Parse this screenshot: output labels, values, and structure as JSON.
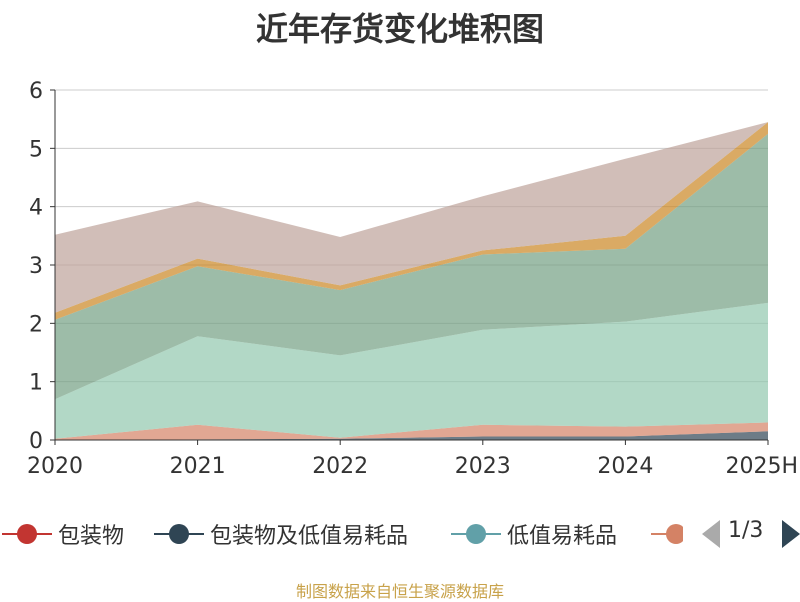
{
  "title": "近年存货变化堆积图",
  "source": "制图数据来自恒生聚源数据库",
  "legend": {
    "items": [
      {
        "label": "包装物",
        "color": "#c23531"
      },
      {
        "label": "包装物及低值易耗品",
        "color": "#2f4554"
      },
      {
        "label": "低值易耗品",
        "color": "#61a0a8"
      },
      {
        "label": "",
        "color": "#d48265"
      }
    ],
    "page": "1/3"
  },
  "chart_data": {
    "type": "area",
    "stacked": true,
    "categories": [
      "2020",
      "2021",
      "2022",
      "2023",
      "2024",
      "2025H"
    ],
    "ylim": [
      0,
      6
    ],
    "yticks": [
      0,
      1,
      2,
      3,
      4,
      5,
      6
    ],
    "grid": true,
    "series": [
      {
        "name": "包装物",
        "color": "#c23531",
        "values": [
          0.0,
          0.0,
          0.0,
          0.0,
          0.0,
          0.0
        ]
      },
      {
        "name": "包装物及低值易耗品",
        "color": "#2f4554",
        "values": [
          0.0,
          0.01,
          0.02,
          0.06,
          0.06,
          0.15
        ]
      },
      {
        "name": "低值易耗品",
        "color": "#61a0a8",
        "values": [
          0.0,
          0.0,
          0.0,
          0.0,
          0.0,
          0.0
        ]
      },
      {
        "color": "#d48265",
        "values": [
          0.02,
          0.25,
          0.02,
          0.2,
          0.17,
          0.15
        ]
      },
      {
        "color": "#91c7ae",
        "values": [
          0.68,
          1.52,
          1.41,
          1.63,
          1.8,
          2.05
        ]
      },
      {
        "color": "#749f83",
        "values": [
          1.36,
          1.2,
          1.12,
          1.29,
          1.25,
          2.9
        ]
      },
      {
        "color": "#ca8622",
        "values": [
          0.12,
          0.13,
          0.08,
          0.07,
          0.22,
          0.2
        ]
      },
      {
        "color": "#bda29a",
        "values": [
          1.34,
          0.98,
          0.83,
          0.93,
          1.32,
          0.0
        ]
      }
    ]
  }
}
